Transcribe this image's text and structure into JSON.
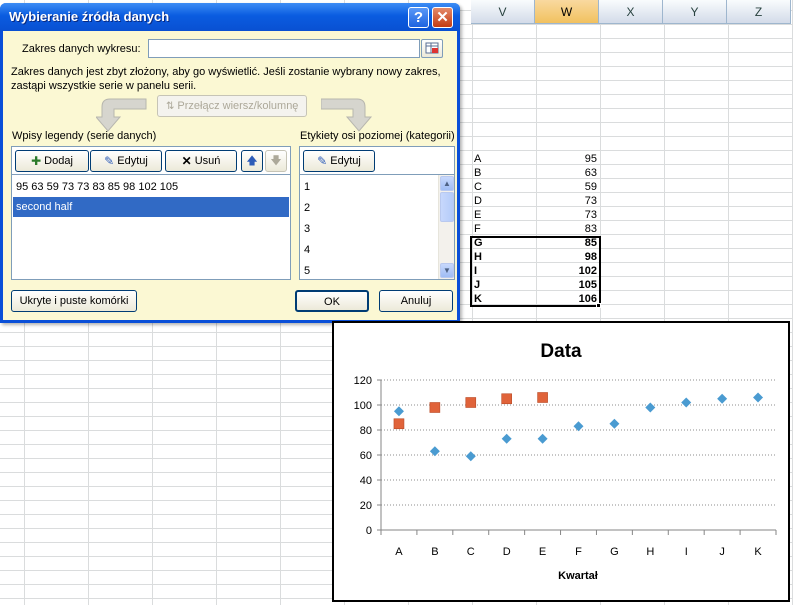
{
  "spreadsheet": {
    "columns": [
      "V",
      "W",
      "X",
      "Y",
      "Z"
    ],
    "rows": [
      {
        "label": "A",
        "value": "95",
        "bold": false
      },
      {
        "label": "B",
        "value": "63",
        "bold": false
      },
      {
        "label": "C",
        "value": "59",
        "bold": false
      },
      {
        "label": "D",
        "value": "73",
        "bold": false
      },
      {
        "label": "E",
        "value": "73",
        "bold": false
      },
      {
        "label": "F",
        "value": "83",
        "bold": false
      },
      {
        "label": "G",
        "value": "85",
        "bold": true
      },
      {
        "label": "H",
        "value": "98",
        "bold": true
      },
      {
        "label": "I",
        "value": "102",
        "bold": true
      },
      {
        "label": "J",
        "value": "105",
        "bold": true
      },
      {
        "label": "K",
        "value": "106",
        "bold": true
      }
    ]
  },
  "dialog": {
    "title": "Wybieranie źródła danych",
    "help_label": "?",
    "close_label": "✕",
    "range_label": "Zakres danych wykresu:",
    "range_value": "",
    "note_line1": "Zakres danych jest zbyt złożony, aby go wyświetlić. Jeśli zostanie wybrany nowy zakres,",
    "note_line2": "zastąpi wszystkie serie w panelu serii.",
    "switch_label": "Przełącz wiersz/kolumnę",
    "legend_title": "Wpisy legendy (serie danych)",
    "category_title": "Etykiety osi poziomej (kategorii)",
    "add_label": "Dodaj",
    "edit_label": "Edytuj",
    "remove_label": "Usuń",
    "series": [
      "95 63 59 73 73 83 85 98 102 105",
      "second half"
    ],
    "categories": [
      "1",
      "2",
      "3",
      "4",
      "5"
    ],
    "hidden_cells_label": "Ukryte i puste komórki",
    "ok_label": "OK",
    "cancel_label": "Anuluj"
  },
  "chart_data": {
    "type": "scatter",
    "title": "Data",
    "xlabel": "Kwartał",
    "ylabel": "",
    "categories": [
      "A",
      "B",
      "C",
      "D",
      "E",
      "F",
      "G",
      "H",
      "I",
      "J",
      "K"
    ],
    "ylim": [
      0,
      120
    ],
    "yticks": [
      0,
      20,
      40,
      60,
      80,
      100,
      120
    ],
    "grid": true,
    "legend": "none",
    "series": [
      {
        "color": "#4a9bd1",
        "marker": "diamond",
        "values": [
          95,
          63,
          59,
          73,
          73,
          83,
          85,
          98,
          102,
          105,
          106
        ]
      },
      {
        "color": "#e0633a",
        "marker": "square",
        "values": [
          85,
          98,
          102,
          105,
          106
        ]
      }
    ]
  }
}
